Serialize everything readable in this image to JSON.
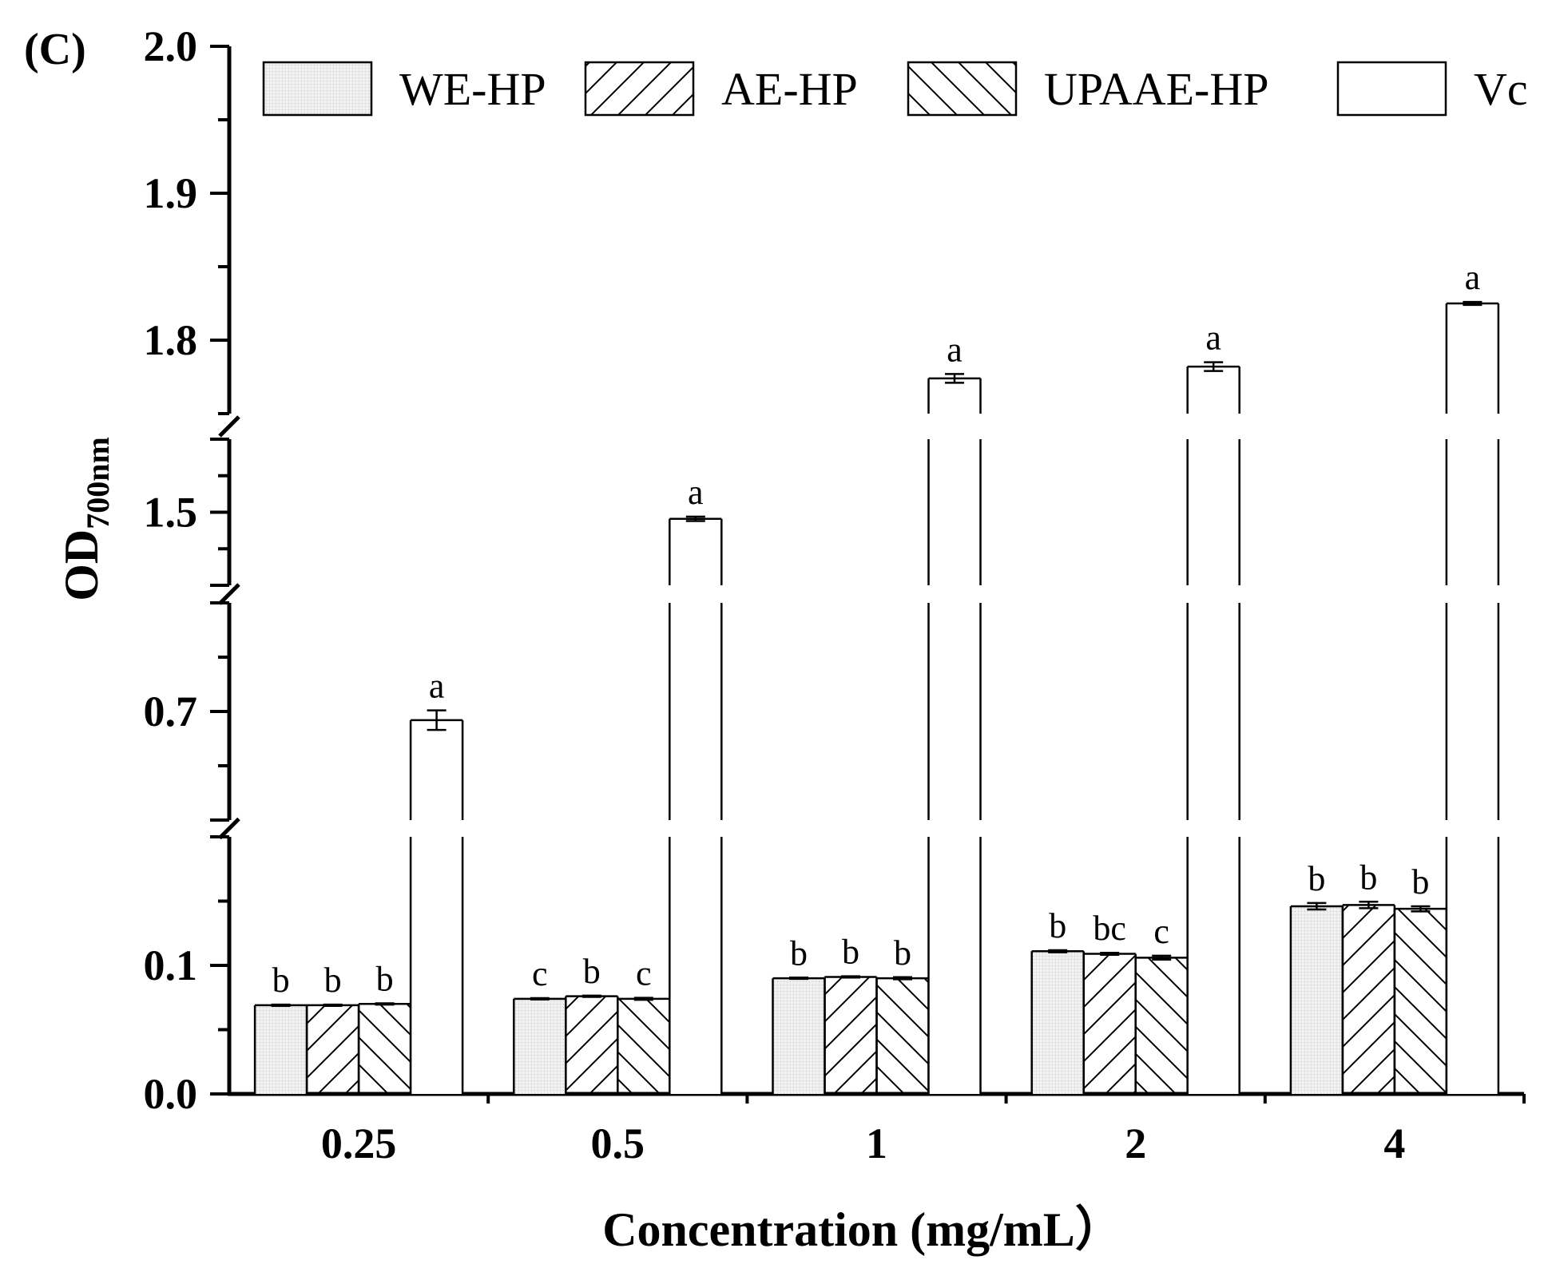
{
  "chart_data": {
    "type": "bar",
    "panel_label": "(C)",
    "title": "",
    "xlabel": "Concentration (mg/mL）",
    "ylabel": {
      "main": "OD",
      "subscript": "700nm"
    },
    "categories": [
      "0.25",
      "0.5",
      "1",
      "2",
      "4"
    ],
    "y_axis_segments": [
      {
        "range": [
          0.0,
          0.2
        ],
        "ticks": [
          "0.0",
          "0.1"
        ]
      },
      {
        "range": [
          0.6,
          0.8
        ],
        "ticks": [
          "0.7"
        ]
      },
      {
        "range": [
          1.4,
          1.6
        ],
        "ticks": [
          "1.5"
        ]
      },
      {
        "range": [
          1.75,
          2.0
        ],
        "ticks": [
          "1.8",
          "1.9",
          "2.0"
        ]
      }
    ],
    "axis_breaks": [
      0.2,
      0.8,
      1.6
    ],
    "legend_position": "top",
    "series": [
      {
        "name": "WE-HP",
        "pattern": "dotted-fill",
        "values": [
          0.069,
          0.074,
          0.09,
          0.111,
          0.146
        ],
        "errors": [
          0.0005,
          0.0005,
          0.0005,
          0.0008,
          0.0025
        ],
        "letters": [
          "b",
          "c",
          "b",
          "b",
          "b"
        ]
      },
      {
        "name": "AE-HP",
        "pattern": "forward-hatch",
        "values": [
          0.069,
          0.076,
          0.091,
          0.109,
          0.147
        ],
        "errors": [
          0.0005,
          0.0005,
          0.0005,
          0.0008,
          0.0025
        ],
        "letters": [
          "b",
          "b",
          "b",
          "bc",
          "b"
        ]
      },
      {
        "name": "UPAAE-HP",
        "pattern": "back-hatch",
        "values": [
          0.07,
          0.074,
          0.09,
          0.106,
          0.144
        ],
        "errors": [
          0.0005,
          0.0008,
          0.0008,
          0.0015,
          0.002
        ],
        "letters": [
          "b",
          "c",
          "b",
          "c",
          "b"
        ]
      },
      {
        "name": "Vc",
        "pattern": "none",
        "values": [
          0.692,
          1.491,
          1.774,
          1.782,
          1.825
        ],
        "errors": [
          0.009,
          0.003,
          0.003,
          0.003,
          0.001
        ],
        "letters": [
          "a",
          "a",
          "a",
          "a",
          "a"
        ]
      }
    ]
  },
  "colors": {
    "axis": "#000000",
    "we_fill": "#efefef",
    "bar_edge": "#000000"
  }
}
